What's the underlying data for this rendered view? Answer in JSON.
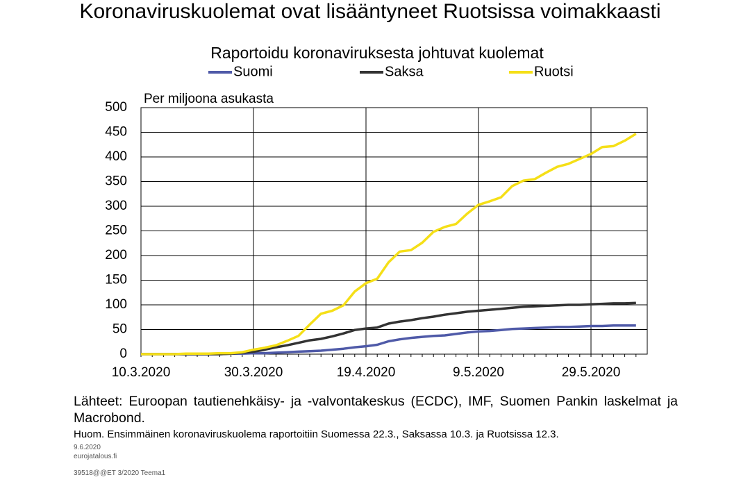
{
  "chart_data": {
    "type": "line",
    "title": "Koronaviruskuolemat ovat lisääntyneet Ruotsissa voimakkaasti",
    "subtitle": "Raportoidu koronaviruksesta johtuvat kuolemat",
    "y_label": "Per miljoona asukasta",
    "x": [
      "10.3.2020",
      "12.3.2020",
      "14.3.2020",
      "16.3.2020",
      "18.3.2020",
      "20.3.2020",
      "22.3.2020",
      "24.3.2020",
      "26.3.2020",
      "28.3.2020",
      "30.3.2020",
      "1.4.2020",
      "3.4.2020",
      "5.4.2020",
      "7.4.2020",
      "9.4.2020",
      "11.4.2020",
      "13.4.2020",
      "15.4.2020",
      "17.4.2020",
      "19.4.2020",
      "21.4.2020",
      "23.4.2020",
      "25.4.2020",
      "27.4.2020",
      "29.4.2020",
      "1.5.2020",
      "3.5.2020",
      "5.5.2020",
      "7.5.2020",
      "9.5.2020",
      "11.5.2020",
      "13.5.2020",
      "15.5.2020",
      "17.5.2020",
      "19.5.2020",
      "21.5.2020",
      "23.5.2020",
      "25.5.2020",
      "27.5.2020",
      "29.5.2020",
      "31.5.2020",
      "2.6.2020",
      "4.6.2020",
      "6.6.2020"
    ],
    "series": [
      {
        "name": "Suomi",
        "color": "#4f5aa8",
        "values": [
          0,
          0,
          0,
          0,
          0,
          0,
          0,
          0,
          1,
          1,
          2,
          2,
          3,
          4,
          5,
          6,
          7,
          9,
          11,
          14,
          16,
          19,
          26,
          30,
          33,
          35,
          37,
          38,
          41,
          44,
          46,
          47,
          49,
          51,
          52,
          53,
          54,
          55,
          55,
          56,
          57,
          57,
          58,
          58,
          58
        ]
      },
      {
        "name": "Saksa",
        "color": "#333333",
        "values": [
          0,
          0,
          0,
          0,
          0,
          0,
          0,
          0,
          1,
          3,
          5,
          9,
          14,
          18,
          23,
          28,
          31,
          36,
          42,
          49,
          52,
          54,
          62,
          66,
          69,
          73,
          76,
          80,
          83,
          86,
          88,
          90,
          92,
          94,
          96,
          97,
          98,
          99,
          100,
          100,
          101,
          102,
          103,
          103,
          104
        ]
      },
      {
        "name": "Ruotsi",
        "color": "#f5df17",
        "values": [
          0,
          0,
          0,
          0,
          1,
          1,
          1,
          2,
          2,
          4,
          9,
          13,
          18,
          27,
          37,
          60,
          82,
          88,
          99,
          127,
          144,
          153,
          186,
          208,
          211,
          226,
          248,
          258,
          264,
          285,
          303,
          310,
          318,
          341,
          352,
          355,
          368,
          380,
          386,
          396,
          406,
          420,
          422,
          433,
          447
        ]
      }
    ],
    "xlim": [
      "10.3.2020",
      "8.6.2020"
    ],
    "xticks": [
      "10.3.2020",
      "30.3.2020",
      "19.4.2020",
      "9.5.2020",
      "29.5.2020"
    ],
    "ylim": [
      0,
      500
    ],
    "yticks": [
      0,
      50,
      100,
      150,
      200,
      250,
      300,
      350,
      400,
      450,
      500
    ],
    "grid": true,
    "source": "Lähteet: Euroopan tautienehkäisy- ja -valvontakeskus (ECDC), IMF, Suomen Pankin laskelmat ja Macrobond.",
    "note": "Huom. Ensimmäinen koronaviruskuolema raportoitiin Suomessa 22.3., Saksassa 10.3. ja Ruotsissa 12.3.",
    "date": "9.6.2020",
    "site": "eurojatalous.fi",
    "code": "39518@@ET 3/2020 Teema1"
  }
}
